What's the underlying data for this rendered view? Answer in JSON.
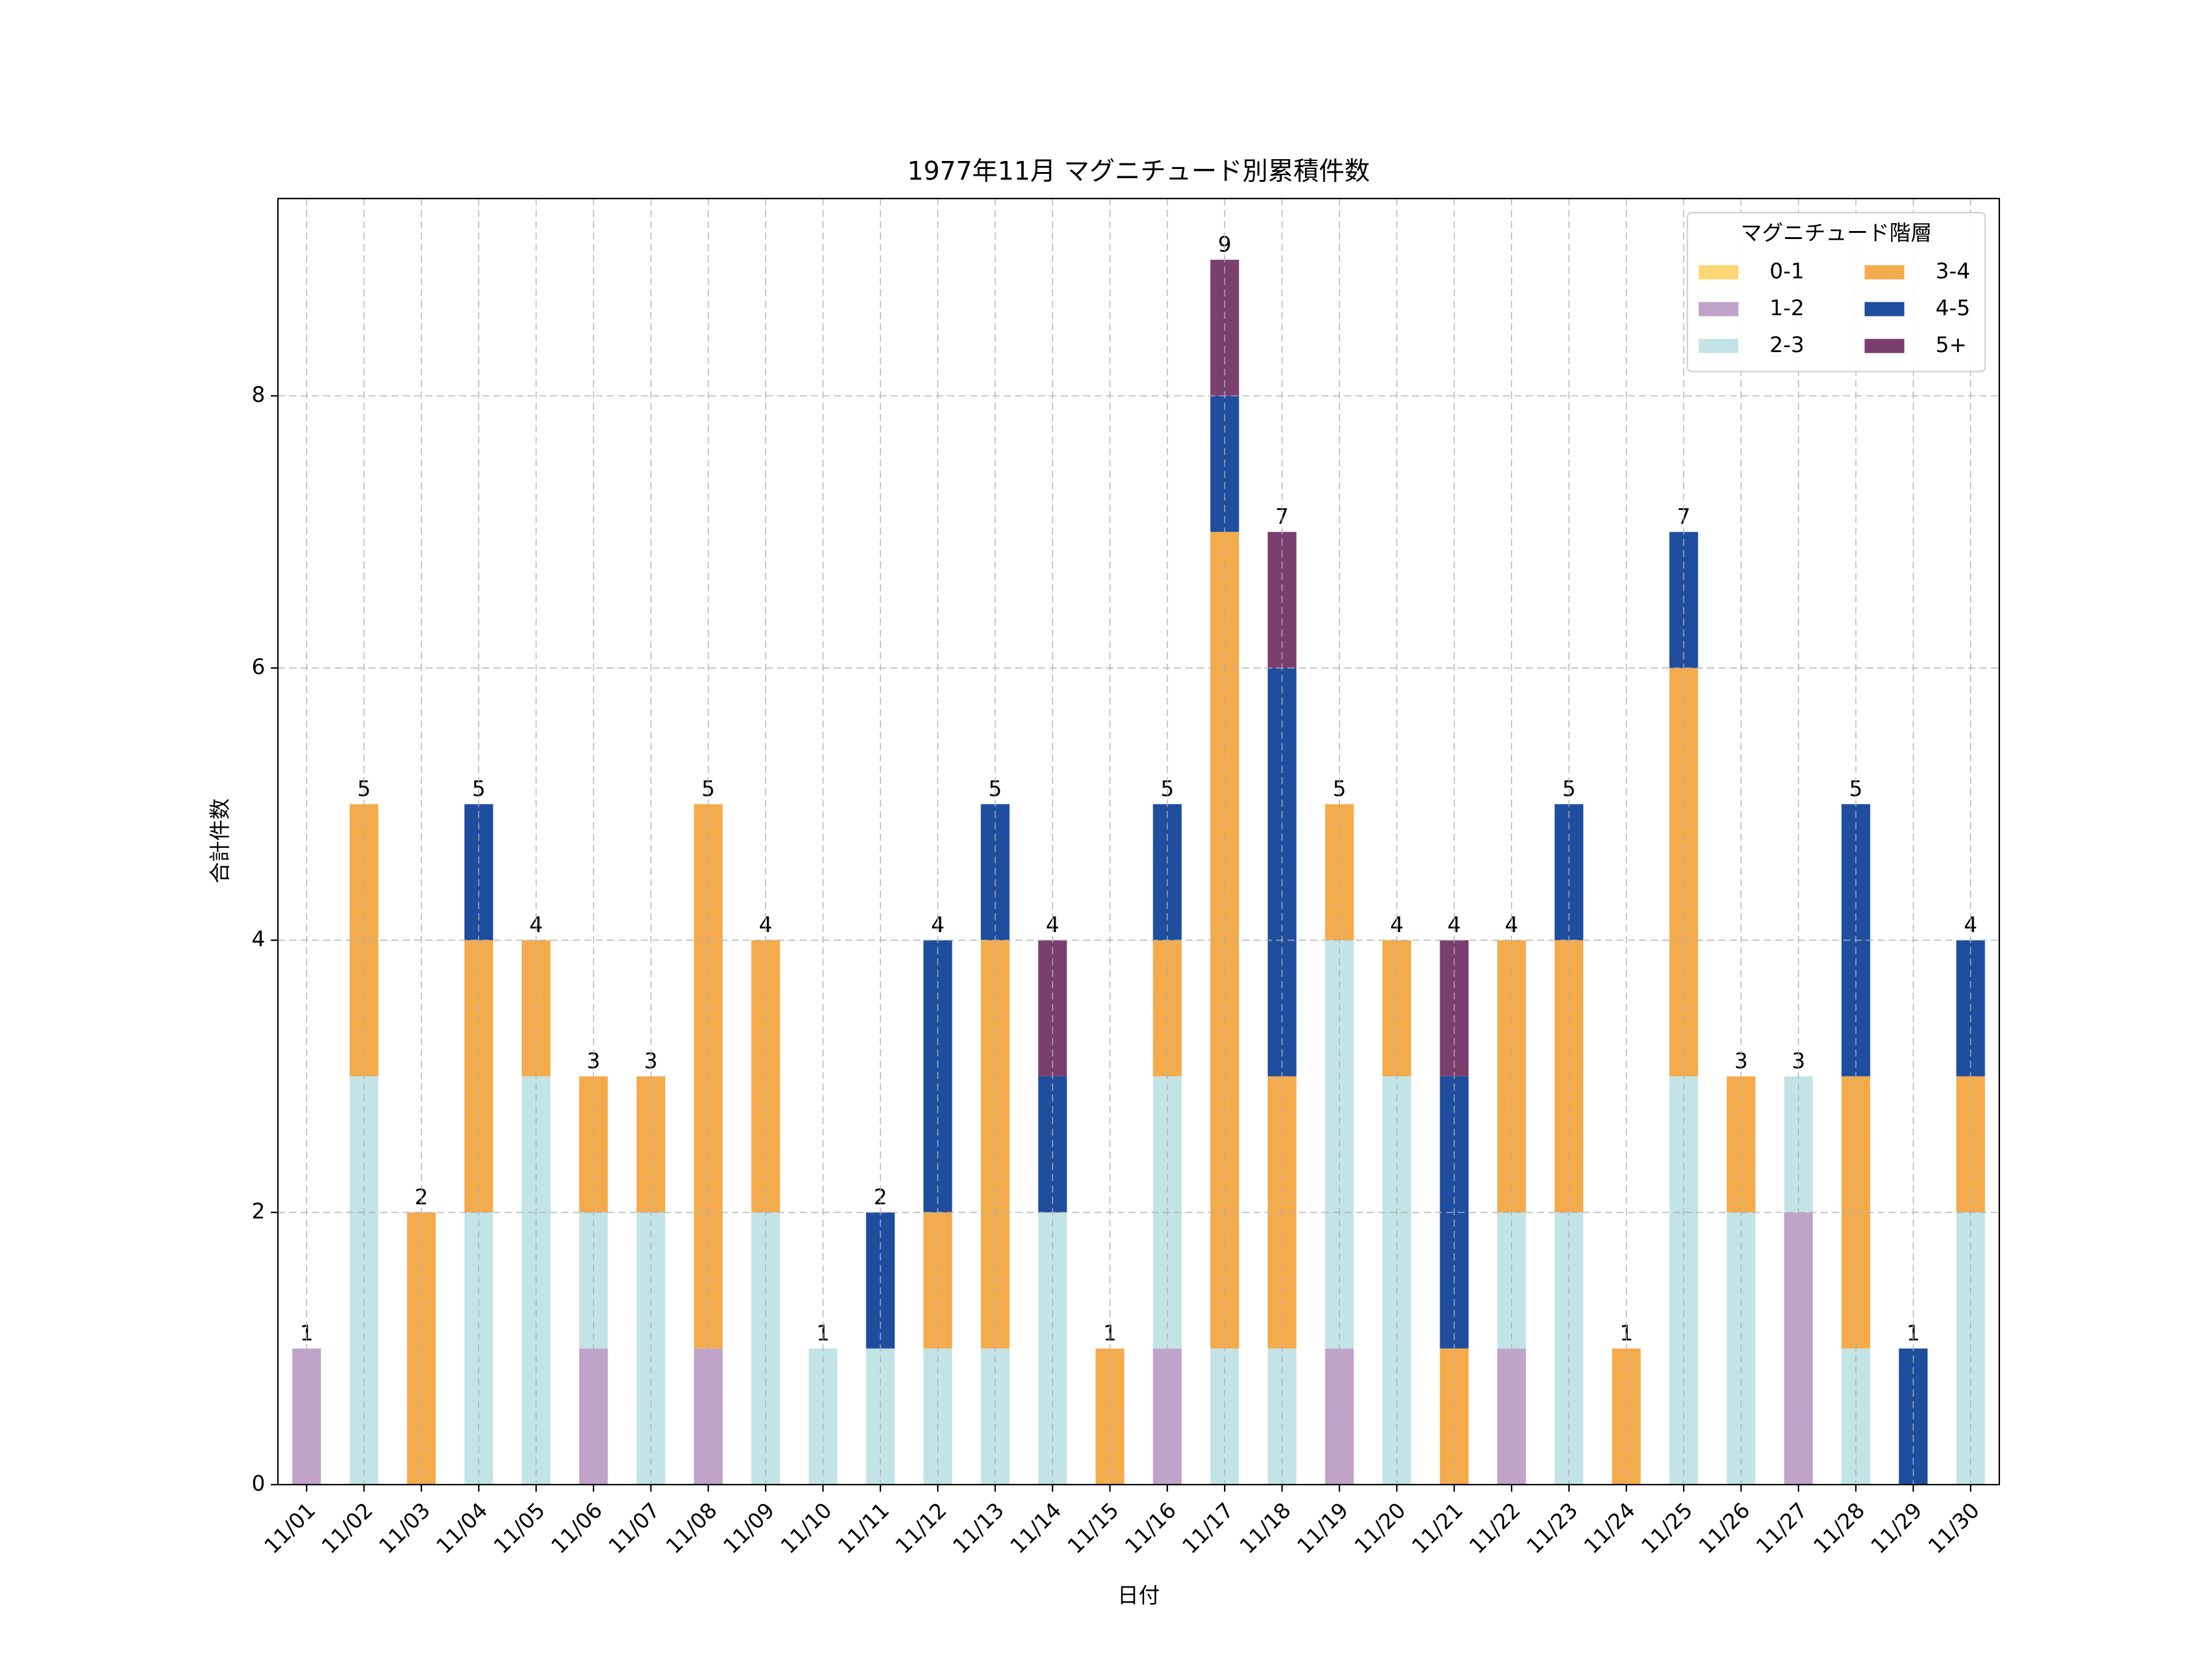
{
  "chart_data": {
    "type": "stacked_bar",
    "title": "1977年11月 マグニチュード別累積件数",
    "x_label": "日付",
    "y_label": "合計件数",
    "categories": [
      "11/01",
      "11/02",
      "11/03",
      "11/04",
      "11/05",
      "11/06",
      "11/07",
      "11/08",
      "11/09",
      "11/10",
      "11/11",
      "11/12",
      "11/13",
      "11/14",
      "11/15",
      "11/16",
      "11/17",
      "11/18",
      "11/19",
      "11/20",
      "11/21",
      "11/22",
      "11/23",
      "11/24",
      "11/25",
      "11/26",
      "11/27",
      "11/28",
      "11/29",
      "11/30"
    ],
    "series": [
      {
        "name": "0-1",
        "color": "#fcd672",
        "values": [
          0,
          0,
          0,
          0,
          0,
          0,
          0,
          0,
          0,
          0,
          0,
          0,
          0,
          0,
          0,
          0,
          0,
          0,
          0,
          0,
          0,
          0,
          0,
          0,
          0,
          0,
          0,
          0,
          0,
          0
        ]
      },
      {
        "name": "1-2",
        "color": "#c0a3c8",
        "values": [
          1,
          0,
          0,
          0,
          0,
          1,
          0,
          1,
          0,
          0,
          0,
          0,
          0,
          0,
          0,
          1,
          0,
          0,
          1,
          0,
          0,
          1,
          0,
          0,
          0,
          0,
          2,
          0,
          0,
          0
        ]
      },
      {
        "name": "2-3",
        "color": "#c3e4e6",
        "values": [
          0,
          3,
          0,
          2,
          3,
          1,
          2,
          0,
          2,
          1,
          1,
          1,
          1,
          2,
          0,
          2,
          1,
          1,
          3,
          3,
          0,
          1,
          2,
          0,
          3,
          2,
          1,
          1,
          0,
          2
        ]
      },
      {
        "name": "3-4",
        "color": "#f4ab4c",
        "values": [
          0,
          2,
          2,
          2,
          1,
          1,
          1,
          4,
          2,
          0,
          0,
          1,
          3,
          0,
          1,
          1,
          6,
          2,
          1,
          1,
          1,
          2,
          2,
          1,
          3,
          1,
          0,
          2,
          0,
          1
        ]
      },
      {
        "name": "4-5",
        "color": "#1f4e9e",
        "values": [
          0,
          0,
          0,
          1,
          0,
          0,
          0,
          0,
          0,
          0,
          1,
          2,
          1,
          1,
          0,
          1,
          1,
          3,
          0,
          0,
          2,
          0,
          1,
          0,
          1,
          0,
          0,
          2,
          1,
          1
        ]
      },
      {
        "name": "5+",
        "color": "#7b3f6f",
        "values": [
          0,
          0,
          0,
          0,
          0,
          0,
          0,
          0,
          0,
          0,
          0,
          0,
          0,
          1,
          0,
          0,
          1,
          1,
          0,
          0,
          1,
          0,
          0,
          0,
          0,
          0,
          0,
          0,
          0,
          0
        ]
      }
    ],
    "totals": [
      1,
      5,
      2,
      5,
      4,
      3,
      3,
      5,
      4,
      1,
      2,
      4,
      5,
      4,
      1,
      5,
      9,
      7,
      5,
      4,
      4,
      4,
      5,
      1,
      7,
      3,
      3,
      5,
      1,
      4
    ],
    "ylim": [
      0,
      9.45
    ],
    "yticks": [
      0,
      2,
      4,
      6,
      8
    ],
    "grid": true,
    "legend_title": "マグニチュード階層",
    "legend_position": "upper right"
  }
}
